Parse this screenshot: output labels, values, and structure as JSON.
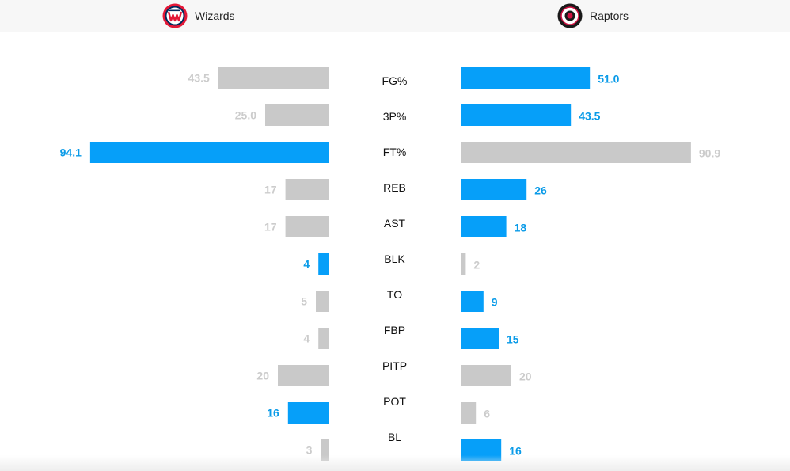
{
  "teams": {
    "home": {
      "name": "Wizards",
      "logo_icon": "wizards-logo-icon"
    },
    "away": {
      "name": "Raptors",
      "logo_icon": "raptors-logo-icon"
    }
  },
  "colors": {
    "leader": "#069ff9",
    "trailer": "#c9c9c9",
    "leader_text": "#0a9be8",
    "trailer_text": "#cccccc",
    "stat_label": "#111111",
    "header_bg": "#f7f7f7"
  },
  "chart_data": {
    "type": "bar",
    "orientation": "horizontal-diverging",
    "categories": [
      "FG%",
      "3P%",
      "FT%",
      "REB",
      "AST",
      "BLK",
      "TO",
      "FBP",
      "PITP",
      "POT",
      "BL"
    ],
    "series": [
      {
        "name": "Wizards",
        "values": [
          43.5,
          25.0,
          94.1,
          17,
          17,
          4,
          5,
          4,
          20,
          16,
          3
        ],
        "labels": [
          "43.5",
          "25.0",
          "94.1",
          "17",
          "17",
          "4",
          "5",
          "4",
          "20",
          "16",
          "3"
        ],
        "leader": [
          false,
          false,
          true,
          false,
          false,
          true,
          false,
          false,
          false,
          true,
          false
        ]
      },
      {
        "name": "Raptors",
        "values": [
          51.0,
          43.5,
          90.9,
          26,
          18,
          2,
          9,
          15,
          20,
          6,
          16
        ],
        "labels": [
          "51.0",
          "43.5",
          "90.9",
          "26",
          "18",
          "2",
          "9",
          "15",
          "20",
          "6",
          "16"
        ],
        "leader": [
          true,
          true,
          false,
          true,
          true,
          false,
          true,
          true,
          false,
          false,
          true
        ]
      }
    ],
    "xlim": [
      0,
      100
    ],
    "grid": false,
    "legend": "top"
  }
}
